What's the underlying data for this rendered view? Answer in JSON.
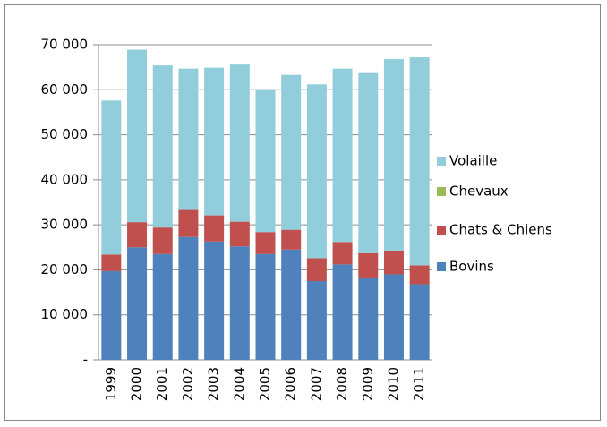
{
  "chart_data": {
    "type": "stacked_bar",
    "categories": [
      "1999",
      "2000",
      "2001",
      "2002",
      "2003",
      "2004",
      "2005",
      "2006",
      "2007",
      "2008",
      "2009",
      "2010",
      "2011"
    ],
    "series": [
      {
        "name": "Bovins",
        "color": "#4f81bd",
        "values": [
          19700,
          25000,
          23500,
          27300,
          26300,
          25200,
          23500,
          24500,
          17500,
          21200,
          18300,
          19000,
          16800
        ]
      },
      {
        "name": "Chats & Chiens",
        "color": "#c0504d",
        "values": [
          3700,
          5600,
          5900,
          6000,
          5800,
          5500,
          4900,
          4400,
          5100,
          5000,
          5400,
          5300,
          4200
        ]
      },
      {
        "name": "Chevaux",
        "color": "#9bbb59",
        "values": [
          0,
          0,
          0,
          0,
          0,
          0,
          0,
          0,
          0,
          0,
          0,
          0,
          0
        ]
      },
      {
        "name": "Volaille",
        "color": "#92cddc",
        "values": [
          34200,
          38300,
          36000,
          31400,
          32800,
          34900,
          31700,
          34400,
          38600,
          38500,
          40200,
          42500,
          46200
        ]
      }
    ],
    "ylim": [
      0,
      70000
    ],
    "yticks": [
      {
        "value": 0,
        "label": "-"
      },
      {
        "value": 10000,
        "label": "10 000"
      },
      {
        "value": 20000,
        "label": "20 000"
      },
      {
        "value": 30000,
        "label": "30 000"
      },
      {
        "value": 40000,
        "label": "40 000"
      },
      {
        "value": 50000,
        "label": "50 000"
      },
      {
        "value": 60000,
        "label": "60 000"
      },
      {
        "value": 70000,
        "label": "70 000"
      }
    ],
    "grid": true,
    "legend": "right"
  }
}
